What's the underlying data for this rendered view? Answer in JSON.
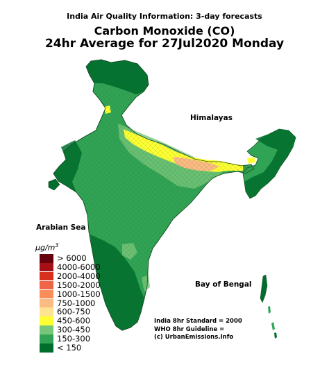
{
  "header": {
    "supertitle": "India Air Quality Information: 3-day forecasts",
    "title_line1": "Carbon Monoxide (CO)",
    "title_line2": "24hr Average for 27Jul2020 Monday"
  },
  "map_labels": {
    "himalayas": "Himalayas",
    "arabian_sea": "Arabian Sea",
    "bay_of_bengal": "Bay of Bengal"
  },
  "legend": {
    "unit_base": "μg/m",
    "unit_exp": "3",
    "bins": [
      {
        "label": "> 6000",
        "color": "#67000d"
      },
      {
        "label": "4000-6000",
        "color": "#a50f15"
      },
      {
        "label": "2000-4000",
        "color": "#d7301f"
      },
      {
        "label": "1500-2000",
        "color": "#ef6548"
      },
      {
        "label": "1000-1500",
        "color": "#fc8d59"
      },
      {
        "label": "750-1000",
        "color": "#fdbb84"
      },
      {
        "label": "600-750",
        "color": "#fee391"
      },
      {
        "label": "450-600",
        "color": "#ffff33"
      },
      {
        "label": "300-450",
        "color": "#78c679"
      },
      {
        "label": "150-300",
        "color": "#31a354"
      },
      {
        "label": "< 150",
        "color": "#006d2c"
      }
    ]
  },
  "notes": {
    "line1": "India 8hr Standard = 2000",
    "line2": "WHO 8hr Guideline =",
    "line3": "(c) UrbanEmissions.Info"
  },
  "colors": {
    "dark_green": "#006d2c",
    "mid_green": "#31a354",
    "light_green": "#78c679",
    "yellow": "#ffff33",
    "light_orange": "#fdbb84"
  }
}
